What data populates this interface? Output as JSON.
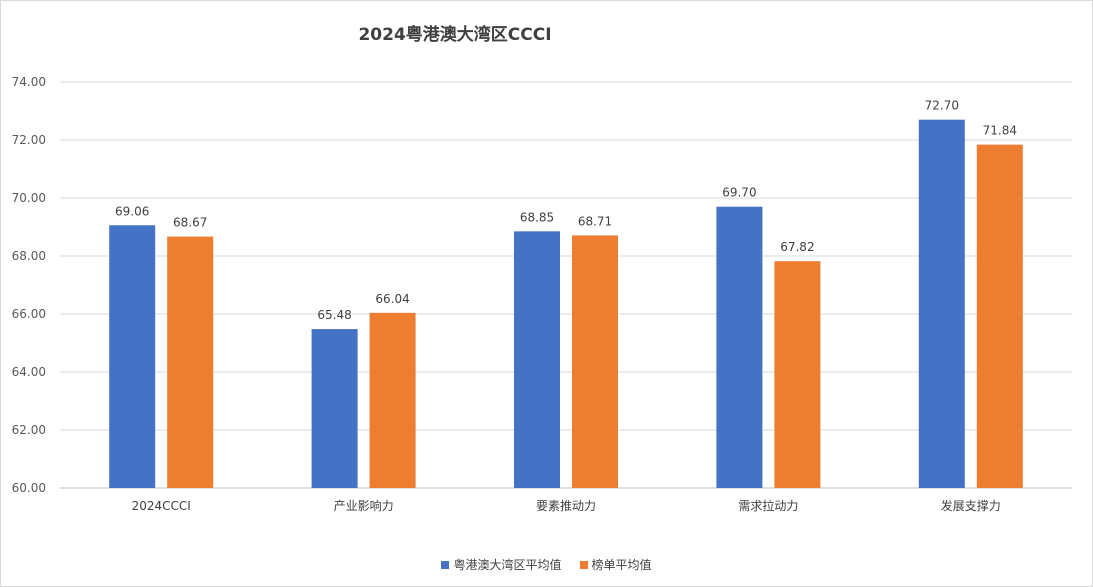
{
  "chart_data": {
    "type": "bar",
    "title": "2024粤港澳大湾区CCCI",
    "categories": [
      "2024CCCI",
      "产业影响力",
      "要素推动力",
      "需求拉动力",
      "发展支撑力"
    ],
    "series": [
      {
        "name": "粤港澳大湾区平均值",
        "color": "#4472C4",
        "values": [
          69.06,
          65.48,
          68.85,
          69.7,
          72.7
        ]
      },
      {
        "name": "榜单平均值",
        "color": "#ED7D31",
        "values": [
          68.67,
          66.04,
          68.71,
          67.82,
          71.84
        ]
      }
    ],
    "ylim": [
      60,
      74
    ],
    "yticks": [
      "60.00",
      "62.00",
      "64.00",
      "66.00",
      "68.00",
      "70.00",
      "72.00",
      "74.00"
    ],
    "grid": true,
    "legend_position": "bottom"
  }
}
